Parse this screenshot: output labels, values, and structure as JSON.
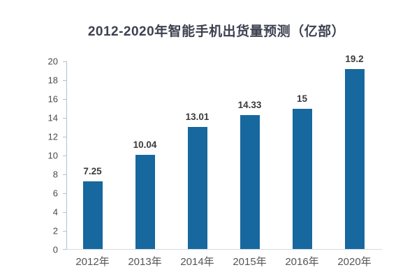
{
  "title": "2012-2020年智能手机出货量预测（亿部）",
  "chart_data": {
    "type": "bar",
    "title": "2012-2020年智能手机出货量预测（亿部）",
    "categories": [
      "2012年",
      "2013年",
      "2014年",
      "2015年",
      "2016年",
      "2020年"
    ],
    "values": [
      7.25,
      10.04,
      13.01,
      14.33,
      15,
      19.2
    ],
    "value_labels": [
      "7.25",
      "10.04",
      "13.01",
      "14.33",
      "15",
      "19.2"
    ],
    "xlabel": "",
    "ylabel": "",
    "ylim": [
      0,
      20
    ],
    "ytick_step": 2,
    "ytick_labels": [
      "0",
      "2",
      "4",
      "6",
      "8",
      "10",
      "12",
      "14",
      "16",
      "18",
      "20"
    ],
    "grid": "off",
    "legend": "none",
    "bar_color": "#17689f",
    "axis_line_color": "#a9c4d6",
    "baseline_color": "#d9d9d9",
    "title_color": "#3c4250",
    "label_color": "#3a3a3a"
  }
}
